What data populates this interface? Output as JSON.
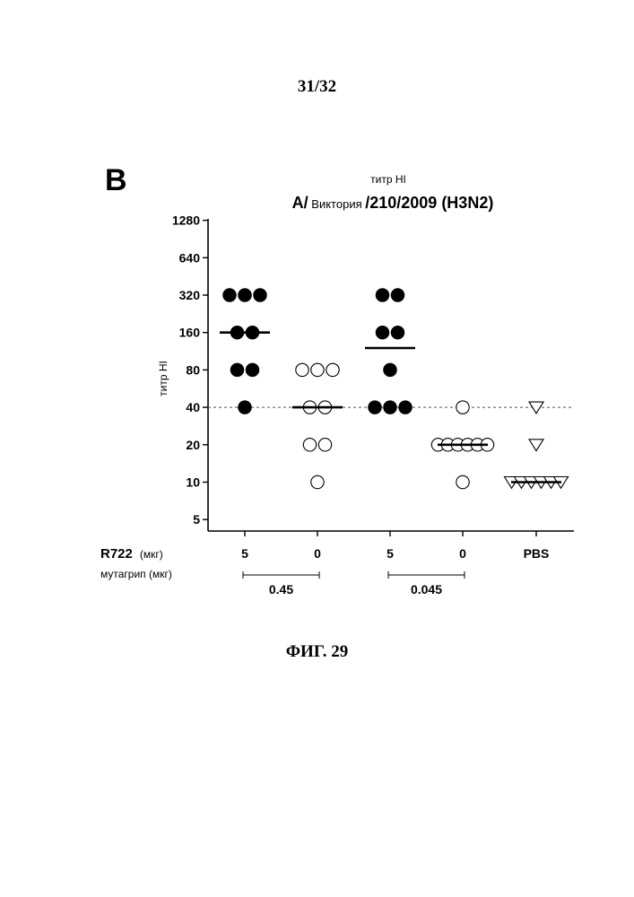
{
  "page": {
    "number": "31/32",
    "figure_caption": "ФИГ. 29"
  },
  "chart_data": {
    "type": "scatter",
    "panel_label": "B",
    "subtitle": "титр HI",
    "title": {
      "part1": "A/",
      "part2": " Виктория ",
      "part3": "/210/2009 (H3N2)"
    },
    "ylabel": "титр HI",
    "y_scale": "log2",
    "y_ticks": [
      5,
      10,
      20,
      40,
      80,
      160,
      320,
      640,
      1280
    ],
    "y_tick_labels": [
      "5",
      "10",
      "20",
      "40",
      "80",
      "160",
      "320",
      "640",
      "1280"
    ],
    "ylim": [
      4,
      1280
    ],
    "reference_line": {
      "y": 40,
      "style": "dashed"
    },
    "row_labels": {
      "r722": "R722",
      "r722_unit": "(мкг)",
      "mutagrip": "мутагрип (мкг)"
    },
    "groups": [
      {
        "x_label": "5",
        "marker": "filled-circle",
        "values": [
          320,
          320,
          320,
          160,
          160,
          80,
          80,
          40
        ],
        "median": 160
      },
      {
        "x_label": "0",
        "marker": "open-circle",
        "values": [
          80,
          80,
          80,
          40,
          40,
          20,
          20,
          10
        ],
        "median": 40
      },
      {
        "x_label": "5",
        "marker": "filled-circle",
        "values": [
          320,
          320,
          160,
          160,
          80,
          40,
          40,
          40
        ],
        "median": 120
      },
      {
        "x_label": "0",
        "marker": "open-circle",
        "values": [
          40,
          20,
          20,
          20,
          20,
          20,
          20,
          10
        ],
        "median": 20
      },
      {
        "x_label": "PBS",
        "marker": "open-triangle",
        "values": [
          40,
          20,
          10,
          10,
          10,
          10,
          10,
          10
        ],
        "median": 10
      }
    ],
    "brackets": [
      {
        "from_group": 0,
        "to_group": 1,
        "label": "0.45"
      },
      {
        "from_group": 2,
        "to_group": 3,
        "label": "0.045"
      }
    ],
    "colors": {
      "ink": "#000000",
      "reference_line": "#555555"
    }
  }
}
